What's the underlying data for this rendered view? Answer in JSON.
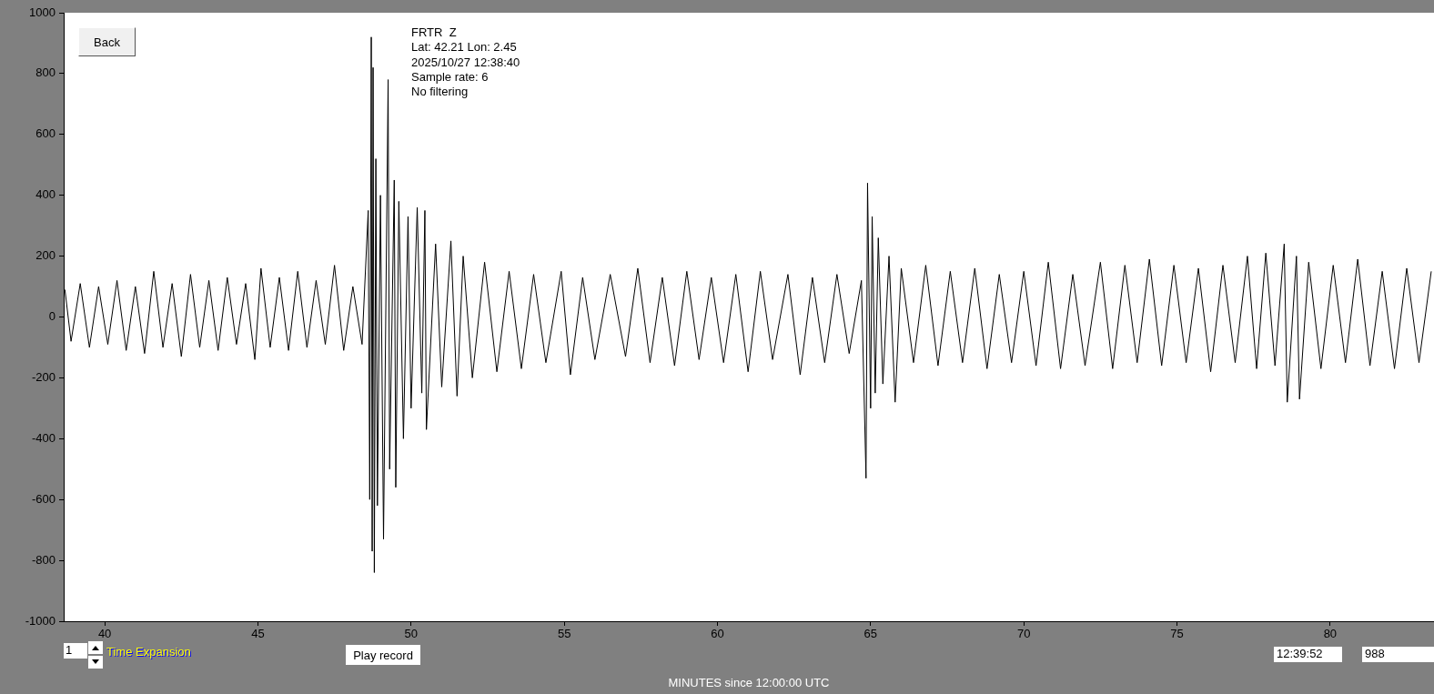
{
  "chart_data": {
    "type": "line",
    "xlabel": "MINUTES since 12:00:00 UTC",
    "annotations": [
      "FRTR  Z",
      "Lat: 42.21 Lon: 2.45",
      "2025/10/27 12:38:40",
      "Sample rate: 6",
      "No filtering",
      "Back",
      "1",
      "Time Expansion",
      "Play record",
      "12:39:52",
      "988"
    ],
    "xlim": [
      38.66,
      83.39
    ],
    "xticks": [
      40,
      45,
      50,
      55,
      60,
      65,
      70,
      75,
      80
    ],
    "ylim": [
      -1000,
      1000
    ],
    "yticks": [
      -1000,
      -800,
      -600,
      -400,
      -200,
      0,
      200,
      400,
      600,
      800,
      1000
    ],
    "grid": false,
    "legend": false,
    "series": [
      {
        "color": "#000000",
        "x": [
          38.7,
          38.9,
          39.2,
          39.5,
          39.8,
          40.1,
          40.4,
          40.7,
          41.0,
          41.3,
          41.6,
          41.9,
          42.2,
          42.5,
          42.8,
          43.1,
          43.4,
          43.7,
          44.0,
          44.3,
          44.6,
          44.9,
          45.1,
          45.4,
          45.7,
          46.0,
          46.3,
          46.6,
          46.9,
          47.2,
          47.5,
          47.8,
          48.1,
          48.4,
          48.6,
          48.65,
          48.7,
          48.73,
          48.76,
          48.8,
          48.85,
          48.9,
          49.0,
          49.1,
          49.25,
          49.3,
          49.45,
          49.5,
          49.6,
          49.75,
          49.9,
          50.0,
          50.2,
          50.35,
          50.45,
          50.5,
          50.8,
          51.0,
          51.3,
          51.5,
          51.7,
          52.0,
          52.4,
          52.8,
          53.2,
          53.6,
          54.0,
          54.4,
          54.9,
          55.2,
          55.6,
          56.0,
          56.5,
          57.0,
          57.4,
          57.8,
          58.2,
          58.6,
          59.0,
          59.4,
          59.8,
          60.2,
          60.6,
          61.0,
          61.4,
          61.8,
          62.3,
          62.7,
          63.1,
          63.5,
          63.9,
          64.3,
          64.7,
          64.85,
          64.9,
          65.0,
          65.05,
          65.15,
          65.25,
          65.4,
          65.6,
          65.8,
          66.0,
          66.4,
          66.8,
          67.2,
          67.6,
          68.0,
          68.4,
          68.8,
          69.2,
          69.6,
          70.0,
          70.4,
          70.8,
          71.2,
          71.6,
          72.0,
          72.5,
          72.9,
          73.3,
          73.7,
          74.1,
          74.5,
          74.9,
          75.3,
          75.7,
          76.1,
          76.5,
          76.9,
          77.3,
          77.6,
          77.9,
          78.2,
          78.5,
          78.6,
          78.9,
          79.0,
          79.3,
          79.7,
          80.1,
          80.5,
          80.9,
          81.3,
          81.7,
          82.1,
          82.5,
          82.9,
          83.3
        ],
        "values": [
          90,
          -80,
          110,
          -100,
          100,
          -90,
          120,
          -110,
          100,
          -120,
          150,
          -100,
          110,
          -130,
          140,
          -100,
          120,
          -110,
          130,
          -90,
          110,
          -140,
          160,
          -100,
          130,
          -110,
          150,
          -100,
          120,
          -90,
          170,
          -110,
          100,
          -90,
          350,
          -600,
          920,
          -770,
          820,
          -840,
          520,
          -620,
          400,
          -730,
          780,
          -500,
          450,
          -560,
          380,
          -400,
          330,
          -300,
          360,
          -250,
          350,
          -370,
          240,
          -230,
          250,
          -260,
          200,
          -200,
          180,
          -180,
          150,
          -170,
          140,
          -150,
          150,
          -190,
          130,
          -140,
          140,
          -130,
          160,
          -150,
          130,
          -160,
          150,
          -140,
          130,
          -150,
          140,
          -180,
          150,
          -140,
          140,
          -190,
          130,
          -150,
          140,
          -120,
          120,
          -530,
          440,
          -300,
          330,
          -250,
          260,
          -220,
          200,
          -280,
          160,
          -150,
          170,
          -160,
          150,
          -150,
          160,
          -170,
          140,
          -150,
          150,
          -160,
          180,
          -170,
          140,
          -160,
          180,
          -170,
          170,
          -150,
          190,
          -160,
          170,
          -150,
          160,
          -180,
          170,
          -150,
          200,
          -170,
          210,
          -160,
          240,
          -280,
          200,
          -270,
          180,
          -170,
          170,
          -150,
          190,
          -160,
          150,
          -170,
          160,
          -150,
          150
        ]
      }
    ]
  }
}
